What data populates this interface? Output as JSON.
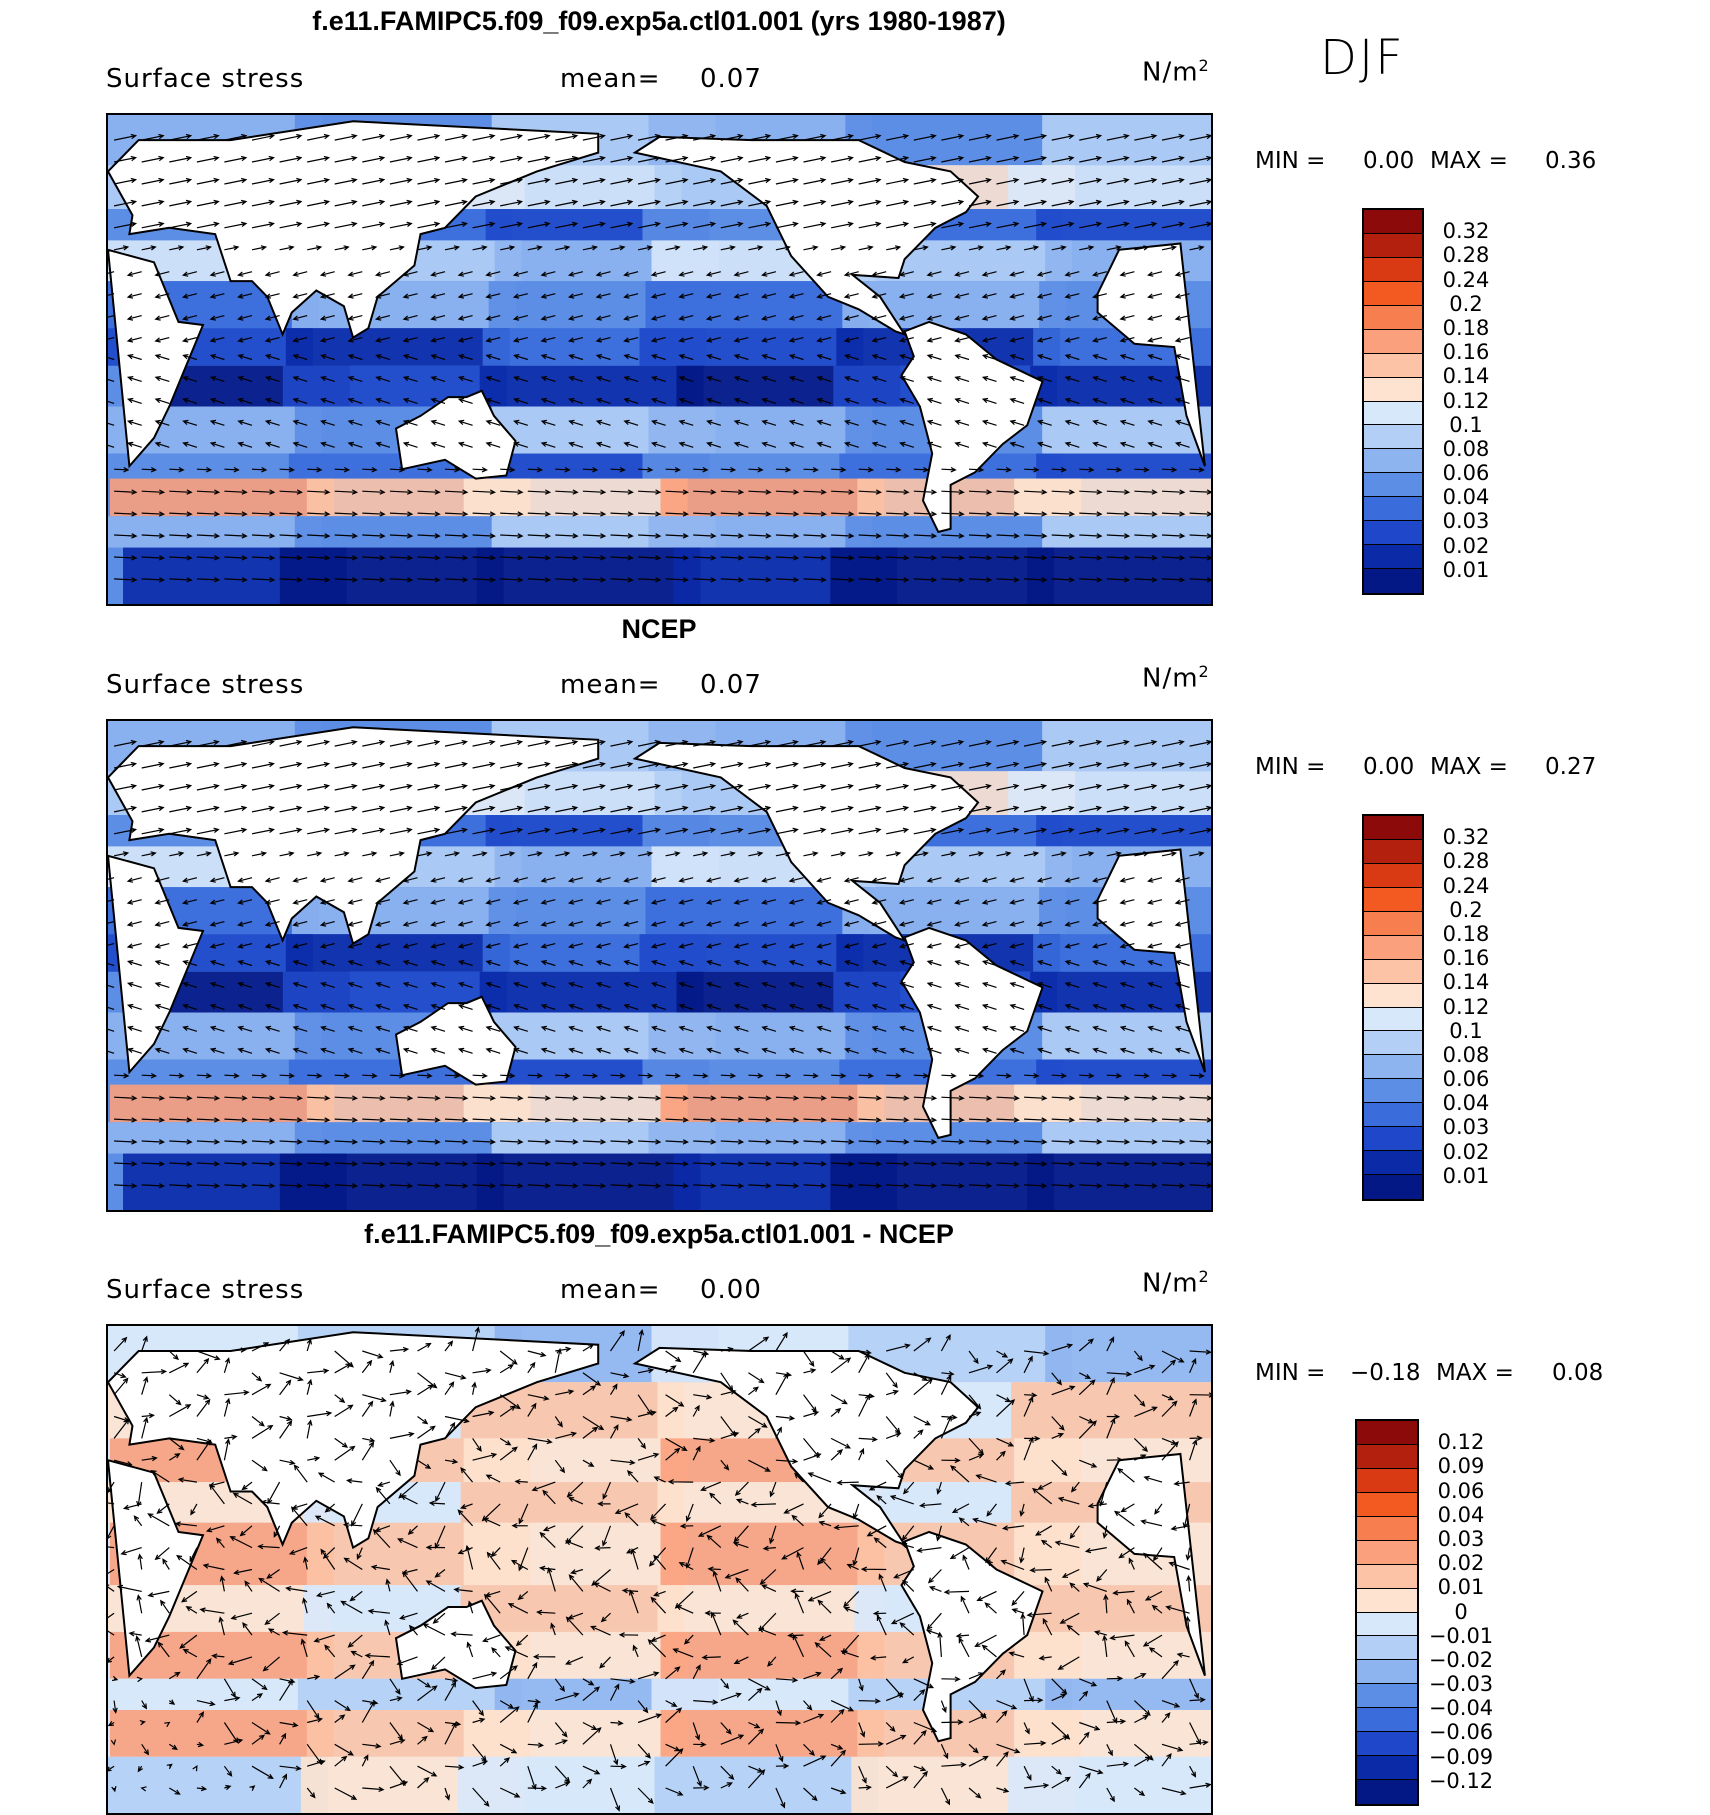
{
  "season": "DJF",
  "panels": [
    {
      "title": "f.e11.FAMIPC5.f09_f09.exp5a.ctl01.001 (yrs 1980-1987)",
      "variable": "Surface stress",
      "mean_label": "mean=",
      "mean_value": "0.07",
      "units_base": "N/m",
      "units_exp": "2",
      "min_label": "MIN =",
      "min_value": "0.00",
      "max_label": "MAX =",
      "max_value": "0.36",
      "colorbar_labels": [
        "0.32",
        "0.28",
        "0.24",
        "0.2",
        "0.18",
        "0.16",
        "0.14",
        "0.12",
        "0.1",
        "0.08",
        "0.06",
        "0.04",
        "0.03",
        "0.02",
        "0.01"
      ],
      "colorbar_colors": [
        "#8c0a0a",
        "#b3200e",
        "#d93a14",
        "#f25a22",
        "#f77e4e",
        "#fba07c",
        "#fcc3a6",
        "#fde3d0",
        "#d8e8fb",
        "#b3cff5",
        "#8eb4ef",
        "#5c8ee6",
        "#3a6cdb",
        "#1e48c9",
        "#0b2aa8",
        "#031785"
      ]
    },
    {
      "title": "NCEP",
      "variable": "Surface stress",
      "mean_label": "mean=",
      "mean_value": "0.07",
      "units_base": "N/m",
      "units_exp": "2",
      "min_label": "MIN =",
      "min_value": "0.00",
      "max_label": "MAX =",
      "max_value": "0.27",
      "colorbar_labels": [
        "0.32",
        "0.28",
        "0.24",
        "0.2",
        "0.18",
        "0.16",
        "0.14",
        "0.12",
        "0.1",
        "0.08",
        "0.06",
        "0.04",
        "0.03",
        "0.02",
        "0.01"
      ],
      "colorbar_colors": [
        "#8c0a0a",
        "#b3200e",
        "#d93a14",
        "#f25a22",
        "#f77e4e",
        "#fba07c",
        "#fcc3a6",
        "#fde3d0",
        "#d8e8fb",
        "#b3cff5",
        "#8eb4ef",
        "#5c8ee6",
        "#3a6cdb",
        "#1e48c9",
        "#0b2aa8",
        "#031785"
      ]
    },
    {
      "title": "f.e11.FAMIPC5.f09_f09.exp5a.ctl01.001 - NCEP",
      "variable": "Surface stress",
      "mean_label": "mean=",
      "mean_value": "0.00",
      "units_base": "N/m",
      "units_exp": "2",
      "min_label": "MIN =",
      "min_value": "−0.18",
      "max_label": "MAX =",
      "max_value": "0.08",
      "colorbar_labels": [
        "0.12",
        "0.09",
        "0.06",
        "0.04",
        "0.03",
        "0.02",
        "0.01",
        "0",
        "−0.01",
        "−0.02",
        "−0.03",
        "−0.04",
        "−0.06",
        "−0.09",
        "−0.12"
      ],
      "colorbar_colors": [
        "#8c0a0a",
        "#b3200e",
        "#d93a14",
        "#f25a22",
        "#f77e4e",
        "#fba07c",
        "#fcc3a6",
        "#fde3d0",
        "#d8e8fb",
        "#b3cff5",
        "#8eb4ef",
        "#5c8ee6",
        "#3a6cdb",
        "#1e48c9",
        "#0b2aa8",
        "#031785"
      ]
    }
  ]
}
